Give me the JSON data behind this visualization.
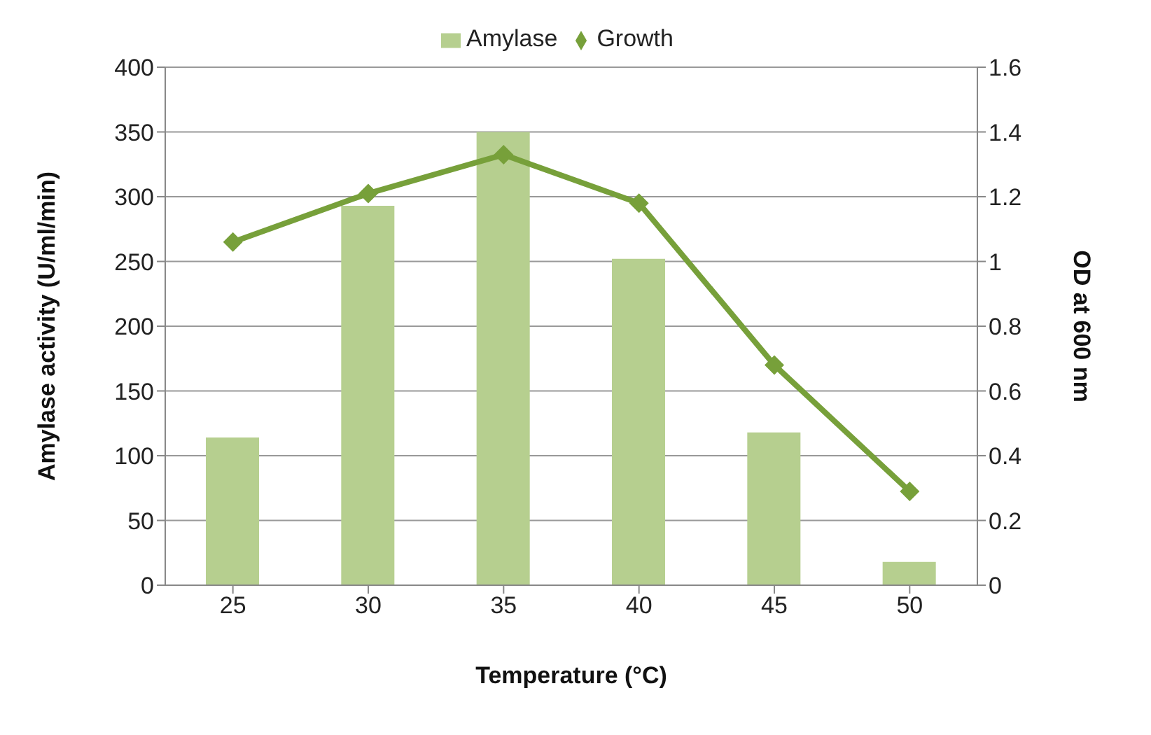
{
  "chart_data": {
    "type": "bar",
    "categories": [
      "25",
      "30",
      "35",
      "40",
      "45",
      "50"
    ],
    "series": [
      {
        "name": "Amylase",
        "color": "#b6cf8f",
        "values": [
          114,
          293,
          350,
          252,
          118,
          18
        ]
      },
      {
        "name": "Growth",
        "type": "line",
        "axis": "y2",
        "color": "#77a03a",
        "marker": "diamond",
        "values": [
          1.06,
          1.21,
          1.33,
          1.18,
          0.68,
          0.29
        ]
      }
    ],
    "xlabel": "Temperature (°C)",
    "ylabel": "Amylase activity (U/ml/min)",
    "y2label": "OD at 600 nm",
    "ylim": [
      0,
      400
    ],
    "yticks": [
      0,
      50,
      100,
      150,
      200,
      250,
      300,
      350,
      400
    ],
    "y2lim": [
      0,
      1.6
    ],
    "y2ticks": [
      0,
      0.2,
      0.4,
      0.6,
      0.8,
      1,
      1.2,
      1.4,
      1.6
    ],
    "grid": "y",
    "legend": "top"
  }
}
